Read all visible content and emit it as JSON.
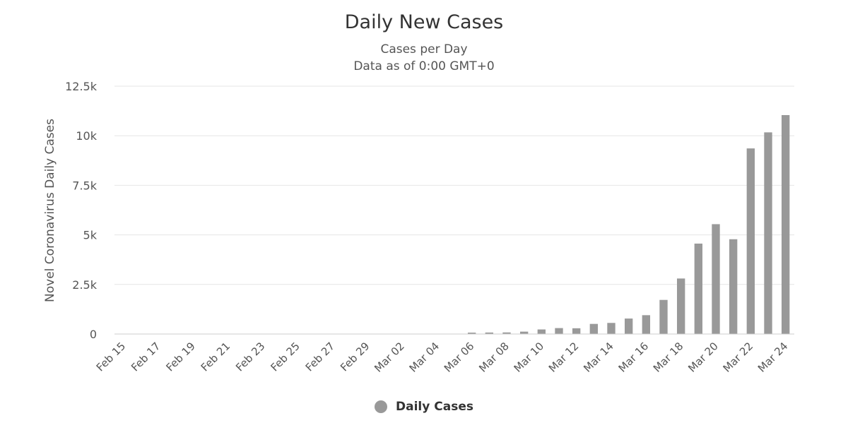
{
  "chart_data": {
    "type": "bar",
    "title": "Daily New Cases",
    "subtitle": [
      "Cases per Day",
      "Data as of 0:00 GMT+0"
    ],
    "xlabel": "",
    "ylabel": "Novel Coronavirus Daily Cases",
    "ylim": [
      0,
      12500
    ],
    "yticks": [
      0,
      2500,
      5000,
      7500,
      10000,
      12500
    ],
    "ytick_labels": [
      "0",
      "2.5k",
      "5k",
      "7.5k",
      "10k",
      "12.5k"
    ],
    "categories": [
      "Feb 15",
      "Feb 16",
      "Feb 17",
      "Feb 18",
      "Feb 19",
      "Feb 20",
      "Feb 21",
      "Feb 22",
      "Feb 23",
      "Feb 24",
      "Feb 25",
      "Feb 26",
      "Feb 27",
      "Feb 28",
      "Feb 29",
      "Mar 01",
      "Mar 02",
      "Mar 03",
      "Mar 04",
      "Mar 05",
      "Mar 06",
      "Mar 07",
      "Mar 08",
      "Mar 09",
      "Mar 10",
      "Mar 11",
      "Mar 12",
      "Mar 13",
      "Mar 14",
      "Mar 15",
      "Mar 16",
      "Mar 17",
      "Mar 18",
      "Mar 19",
      "Mar 20",
      "Mar 21",
      "Mar 22",
      "Mar 23",
      "Mar 24"
    ],
    "xtick_labels": [
      "Feb 15",
      "Feb 17",
      "Feb 19",
      "Feb 21",
      "Feb 23",
      "Feb 25",
      "Feb 27",
      "Feb 29",
      "Mar 02",
      "Mar 04",
      "Mar 06",
      "Mar 08",
      "Mar 10",
      "Mar 12",
      "Mar 14",
      "Mar 16",
      "Mar 18",
      "Mar 20",
      "Mar 22",
      "Mar 24"
    ],
    "series": [
      {
        "name": "Daily Cases",
        "color": "#999999",
        "values": [
          0,
          0,
          0,
          0,
          0,
          0,
          0,
          0,
          0,
          0,
          0,
          0,
          0,
          0,
          0,
          0,
          0,
          0,
          0,
          0,
          70,
          75,
          80,
          120,
          230,
          300,
          290,
          510,
          560,
          780,
          950,
          1720,
          2800,
          4560,
          5540,
          4780,
          9360,
          10170,
          11040
        ]
      }
    ],
    "grid": true,
    "legend_position": "bottom-center"
  }
}
